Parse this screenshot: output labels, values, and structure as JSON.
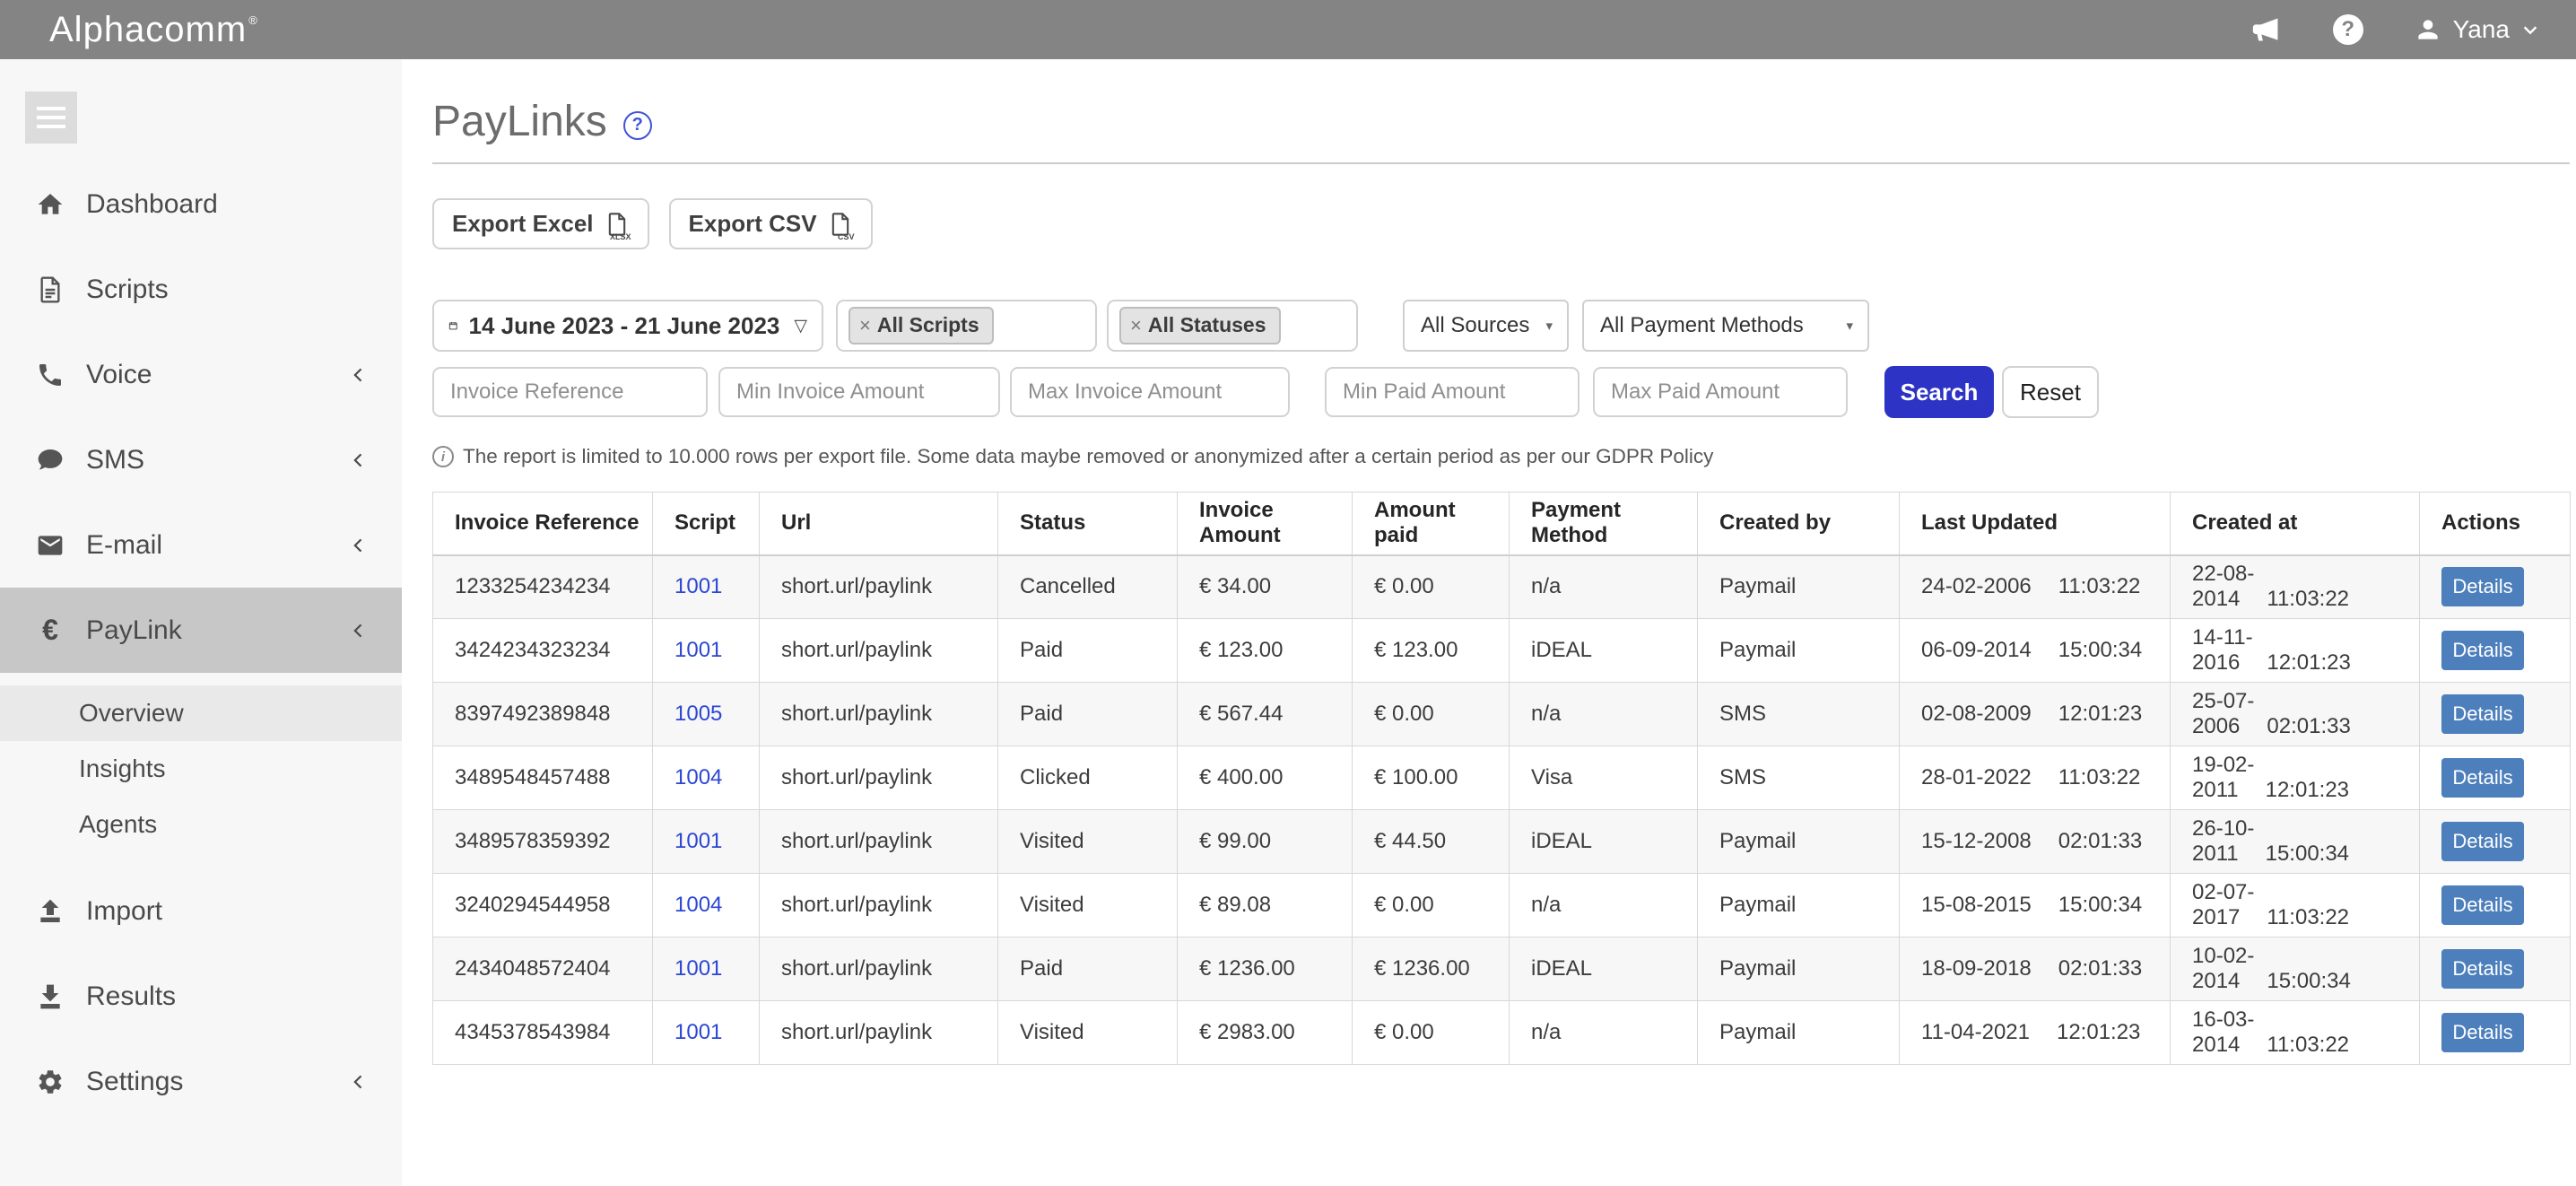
{
  "topbar": {
    "logo": "Alphacomm",
    "logo_mark": "®",
    "user_name": "Yana"
  },
  "icons": {
    "dropdown_triangle": "▽",
    "select_caret": "▾",
    "tag_close": "×",
    "help_mark": "?",
    "info_mark": "i",
    "excel_file_type": "XLSX",
    "csv_file_type": "CSV"
  },
  "sidebar": {
    "items": [
      {
        "label": "Dashboard"
      },
      {
        "label": "Scripts"
      },
      {
        "label": "Voice"
      },
      {
        "label": "SMS"
      },
      {
        "label": "E-mail"
      },
      {
        "label": "PayLink"
      },
      {
        "label": "Import"
      },
      {
        "label": "Results"
      },
      {
        "label": "Settings"
      }
    ],
    "paylink_subitems": [
      {
        "label": "Overview"
      },
      {
        "label": "Insights"
      },
      {
        "label": "Agents"
      }
    ]
  },
  "page": {
    "title": "PayLinks",
    "export_excel_label": "Export Excel",
    "export_csv_label": "Export CSV",
    "info_note": "The report is limited to 10.000 rows per export file. Some data maybe removed or anonymized after a certain period as per our GDPR Policy"
  },
  "filters": {
    "date_range": "14 June 2023 - 21 June 2023",
    "scripts_tag": "All Scripts",
    "statuses_tag": "All Statuses",
    "sources_dropdown": "All Sources",
    "payment_methods_dropdown": "All Payment Methods",
    "invoice_reference_placeholder": "Invoice Reference",
    "min_invoice_amount_placeholder": "Min Invoice Amount",
    "max_invoice_amount_placeholder": "Max Invoice Amount",
    "min_paid_amount_placeholder": "Min Paid Amount",
    "max_paid_amount_placeholder": "Max Paid Amount",
    "search_label": "Search",
    "reset_label": "Reset"
  },
  "table": {
    "columns": [
      "Invoice Reference",
      "Script",
      "Url",
      "Status",
      "Invoice Amount",
      "Amount paid",
      "Payment Method",
      "Created by",
      "Last Updated",
      "Created at",
      "Actions"
    ],
    "details_label": "Details",
    "rows": [
      {
        "invoice_reference": "1233254234234",
        "script": "1001",
        "url": "short.url/paylink",
        "status": "Cancelled",
        "invoice_amount": "€ 34.00",
        "amount_paid": "€ 0.00",
        "payment_method": "n/a",
        "created_by": "Paymail",
        "last_updated": {
          "date": "24-02-2006",
          "time": "11:03:22"
        },
        "created_at": {
          "date": "22-08-2014",
          "time": "11:03:22"
        }
      },
      {
        "invoice_reference": "3424234323234",
        "script": "1001",
        "url": "short.url/paylink",
        "status": "Paid",
        "invoice_amount": "€ 123.00",
        "amount_paid": "€ 123.00",
        "payment_method": "iDEAL",
        "created_by": "Paymail",
        "last_updated": {
          "date": "06-09-2014",
          "time": "15:00:34"
        },
        "created_at": {
          "date": "14-11-2016",
          "time": "12:01:23"
        }
      },
      {
        "invoice_reference": "8397492389848",
        "script": "1005",
        "url": "short.url/paylink",
        "status": "Paid",
        "invoice_amount": "€ 567.44",
        "amount_paid": "€ 0.00",
        "payment_method": "n/a",
        "created_by": "SMS",
        "last_updated": {
          "date": "02-08-2009",
          "time": "12:01:23"
        },
        "created_at": {
          "date": "25-07-2006",
          "time": "02:01:33"
        }
      },
      {
        "invoice_reference": "3489548457488",
        "script": "1004",
        "url": "short.url/paylink",
        "status": "Clicked",
        "invoice_amount": "€ 400.00",
        "amount_paid": "€ 100.00",
        "payment_method": "Visa",
        "created_by": "SMS",
        "last_updated": {
          "date": "28-01-2022",
          "time": "11:03:22"
        },
        "created_at": {
          "date": "19-02-2011",
          "time": "12:01:23"
        }
      },
      {
        "invoice_reference": "3489578359392",
        "script": "1001",
        "url": "short.url/paylink",
        "status": "Visited",
        "invoice_amount": "€ 99.00",
        "amount_paid": "€ 44.50",
        "payment_method": "iDEAL",
        "created_by": "Paymail",
        "last_updated": {
          "date": "15-12-2008",
          "time": "02:01:33"
        },
        "created_at": {
          "date": "26-10-2011",
          "time": "15:00:34"
        }
      },
      {
        "invoice_reference": "3240294544958",
        "script": "1004",
        "url": "short.url/paylink",
        "status": "Visited",
        "invoice_amount": "€ 89.08",
        "amount_paid": "€ 0.00",
        "payment_method": "n/a",
        "created_by": "Paymail",
        "last_updated": {
          "date": "15-08-2015",
          "time": "15:00:34"
        },
        "created_at": {
          "date": "02-07-2017",
          "time": "11:03:22"
        }
      },
      {
        "invoice_reference": "2434048572404",
        "script": "1001",
        "url": "short.url/paylink",
        "status": "Paid",
        "invoice_amount": "€ 1236.00",
        "amount_paid": "€ 1236.00",
        "payment_method": "iDEAL",
        "created_by": "Paymail",
        "last_updated": {
          "date": "18-09-2018",
          "time": "02:01:33"
        },
        "created_at": {
          "date": "10-02-2014",
          "time": "15:00:34"
        }
      },
      {
        "invoice_reference": "4345378543984",
        "script": "1001",
        "url": "short.url/paylink",
        "status": "Visited",
        "invoice_amount": "€ 2983.00",
        "amount_paid": "€ 0.00",
        "payment_method": "n/a",
        "created_by": "Paymail",
        "last_updated": {
          "date": "11-04-2021",
          "time": "12:01:23"
        },
        "created_at": {
          "date": "16-03-2014",
          "time": "11:03:22"
        }
      }
    ]
  },
  "colors": {
    "topbar": "#848484",
    "sidebar_bg": "#f7f7f7",
    "sidebar_active_bg": "#c7c7c7",
    "subitem_selected_bg": "#e9e9e9",
    "search_button": "#2d33c5",
    "details_button": "#4c7fbc",
    "script_link": "#2b46d3",
    "table_stripe": "#f7f7f7",
    "table_border": "#d8d8d8"
  }
}
